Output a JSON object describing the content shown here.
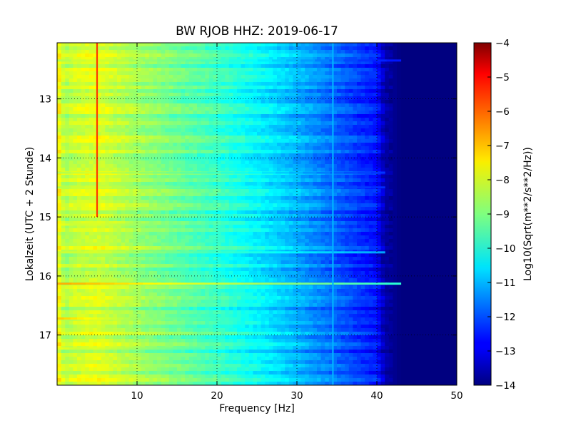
{
  "chart_data": {
    "type": "heatmap",
    "title": "BW RJOB HHZ: 2019-06-17",
    "xlabel": "Frequency [Hz]",
    "ylabel": "Lokalzeit (UTC + 2 Stunde)",
    "xlim": [
      0,
      50
    ],
    "ylim": [
      17.85,
      12.05
    ],
    "y_inverted": true,
    "x_ticks": [
      10,
      20,
      30,
      40,
      50
    ],
    "y_ticks": [
      13,
      14,
      15,
      16,
      17
    ],
    "grid": true,
    "colormap": "jet",
    "colorbar": {
      "label": "Log10(Sqrt(m**2/s**2/Hz))",
      "min": -14,
      "max": -4,
      "ticks": [
        -4,
        -5,
        -6,
        -7,
        -8,
        -9,
        -10,
        -11,
        -12,
        -13,
        -14
      ]
    },
    "value_profile": {
      "frequency_hz": [
        0,
        1,
        2,
        5,
        10,
        15,
        20,
        25,
        30,
        35,
        38,
        40,
        41,
        42,
        43,
        50
      ],
      "log10_amplitude": [
        -7.6,
        -8.6,
        -8.3,
        -8.1,
        -8.7,
        -9.2,
        -9.7,
        -10.3,
        -11.0,
        -11.8,
        -12.3,
        -12.6,
        -13.6,
        -13.8,
        -14,
        -14
      ]
    },
    "features": [
      {
        "label": "narrow peak",
        "frequency_hz": 5.0,
        "time_start": 12.05,
        "time_end": 15.0,
        "level": -5.8
      },
      {
        "label": "narrow peak",
        "frequency_hz": 34.5,
        "time_start": 12.05,
        "time_end": 17.85,
        "level": -11.0
      }
    ],
    "broadband_events": [
      {
        "time": 15.13,
        "level": -7.8,
        "fmax": 12
      },
      {
        "time": 15.6,
        "level": -8.2,
        "fmax": 41
      },
      {
        "time": 16.13,
        "level": -6.9,
        "fmax": 43
      },
      {
        "time": 16.72,
        "level": -7.2,
        "fmax": 20
      },
      {
        "time": 17.23,
        "level": -7.9,
        "fmax": 18
      },
      {
        "time": 14.25,
        "level": -9.3,
        "fmax": 41
      },
      {
        "time": 14.5,
        "level": -9.4,
        "fmax": 41
      },
      {
        "time": 12.35,
        "level": -9.6,
        "fmax": 43
      }
    ]
  }
}
